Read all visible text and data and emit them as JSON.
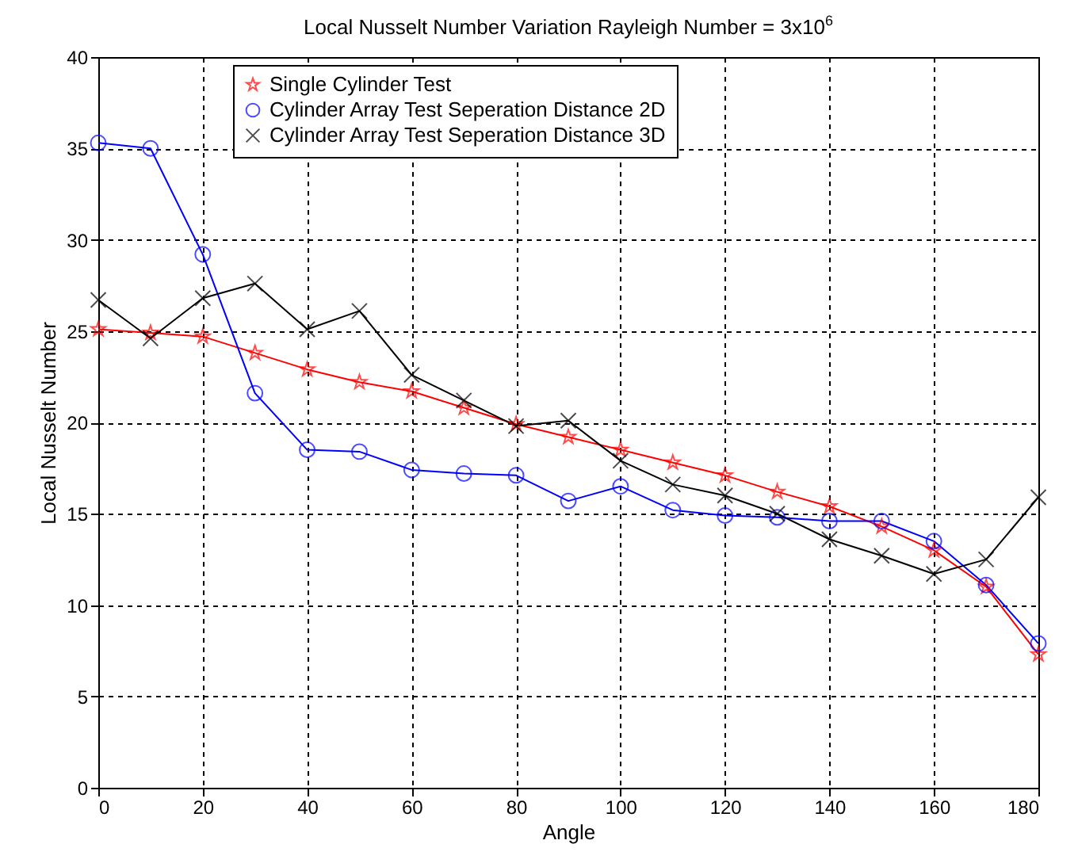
{
  "chart_data": {
    "type": "line",
    "title": "Local Nusselt Number Variation Rayleigh Number = 3x10$^{6}$",
    "xlabel": "Angle",
    "ylabel": "Local Nusselt Number",
    "x": [
      0,
      10,
      20,
      30,
      40,
      50,
      60,
      70,
      80,
      90,
      100,
      110,
      120,
      130,
      140,
      150,
      160,
      170,
      180
    ],
    "series": [
      {
        "name": "Single Cylinder Test",
        "color": "#ff0000",
        "marker": "star",
        "values": [
          25.1,
          24.9,
          24.7,
          23.8,
          22.9,
          22.2,
          21.7,
          20.8,
          19.9,
          19.2,
          18.5,
          17.8,
          17.1,
          16.2,
          15.4,
          14.3,
          13.0,
          11.0,
          7.3
        ]
      },
      {
        "name": "Cylinder Array Test Seperation Distance 2D",
        "color": "#0000ff",
        "marker": "circle",
        "values": [
          35.3,
          35.0,
          29.2,
          21.6,
          18.5,
          18.4,
          17.4,
          17.2,
          17.1,
          15.7,
          16.5,
          15.2,
          14.9,
          14.8,
          14.6,
          14.6,
          13.5,
          11.1,
          7.9
        ]
      },
      {
        "name": "Cylinder Array Test Seperation Distance 3D",
        "color": "#000000",
        "marker": "cross",
        "values": [
          26.7,
          24.6,
          26.8,
          27.6,
          25.1,
          26.1,
          22.6,
          21.2,
          19.8,
          20.1,
          17.9,
          16.6,
          16.0,
          15.0,
          13.6,
          12.7,
          11.7,
          12.5,
          15.9
        ]
      }
    ],
    "xlim": [
      0,
      180
    ],
    "xticks": [
      0,
      20,
      40,
      60,
      80,
      100,
      120,
      140,
      160,
      180
    ],
    "ylim": [
      0,
      40
    ],
    "yticks": [
      0,
      5,
      10,
      15,
      20,
      25,
      30,
      35,
      40
    ],
    "grid": true,
    "legend": "top left",
    "line_style": "solid"
  }
}
